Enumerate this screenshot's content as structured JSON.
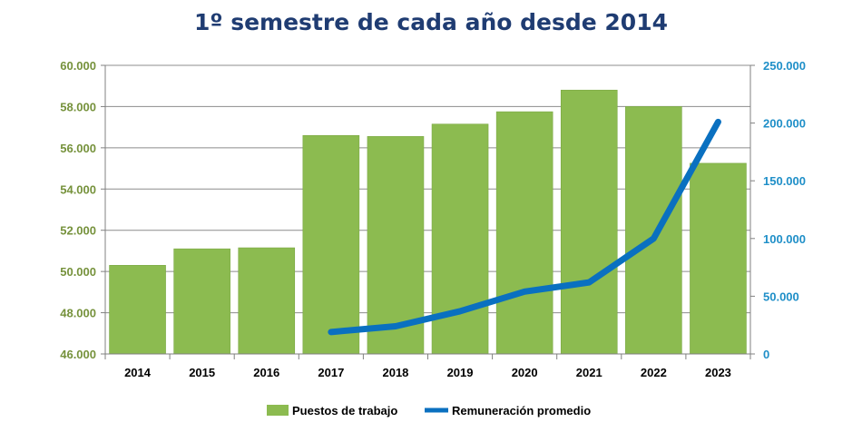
{
  "chart_data": {
    "type": "bar+line",
    "title": "1º semestre de cada año desde 2014",
    "categories": [
      "2014",
      "2015",
      "2016",
      "2017",
      "2018",
      "2019",
      "2020",
      "2021",
      "2022",
      "2023"
    ],
    "series": [
      {
        "name": "Puestos de trabajo",
        "type": "bar",
        "axis": "left",
        "color": "#8cbb50",
        "values": [
          50300,
          51100,
          51150,
          56600,
          56550,
          57150,
          57750,
          58800,
          58000,
          55250
        ]
      },
      {
        "name": "Remuneración promedio",
        "type": "line",
        "axis": "right",
        "color": "#0a70c0",
        "values": [
          null,
          null,
          null,
          19000,
          24000,
          37000,
          54000,
          62000,
          100000,
          201000
        ]
      }
    ],
    "y_left": {
      "min": 46000,
      "max": 60000,
      "ticks": [
        "46.000",
        "48.000",
        "50.000",
        "52.000",
        "54.000",
        "56.000",
        "58.000",
        "60.000"
      ],
      "tick_color": "#76923c"
    },
    "y_right": {
      "min": 0,
      "max": 250000,
      "ticks": [
        "0",
        "50.000",
        "100.000",
        "150.000",
        "200.000",
        "250.000"
      ],
      "tick_color": "#1f8fc8"
    },
    "grid": true,
    "legend_position": "bottom"
  }
}
